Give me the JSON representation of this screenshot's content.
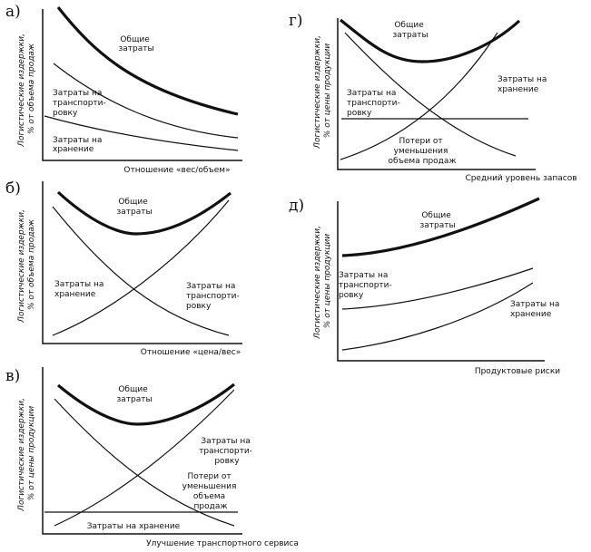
{
  "panels": [
    {
      "id": "a",
      "letter": "а)",
      "ylabel": [
        "Логистические издержки,",
        "% от объема продаж"
      ],
      "xlabel": "Отношение «вес/объем»",
      "curves": [
        {
          "name": "total",
          "label": [
            "Общие",
            "затраты"
          ]
        },
        {
          "name": "transport",
          "label": [
            "Затраты на",
            "транспорти-",
            "ровку"
          ]
        },
        {
          "name": "storage",
          "label": [
            "Затраты на",
            "хранение"
          ]
        }
      ]
    },
    {
      "id": "b",
      "letter": "б)",
      "ylabel": [
        "Логистические издержки,",
        "% от объема продаж"
      ],
      "xlabel": "Отношение «цена/вес»",
      "curves": [
        {
          "name": "total",
          "label": [
            "Общие",
            "затраты"
          ]
        },
        {
          "name": "storage",
          "label": [
            "Затраты на",
            "хранение"
          ]
        },
        {
          "name": "transport",
          "label": [
            "Затраты на",
            "транспорти-",
            "ровку"
          ]
        }
      ]
    },
    {
      "id": "v",
      "letter": "в)",
      "ylabel": [
        "Логистические издержки,",
        "% от цены продукции"
      ],
      "xlabel": "Улучшение транспортного сервиса",
      "curves": [
        {
          "name": "total",
          "label": [
            "Общие",
            "затраты"
          ]
        },
        {
          "name": "transport",
          "label": [
            "Затраты на",
            "транспорти-",
            "ровку"
          ]
        },
        {
          "name": "losses",
          "label": [
            "Потери от",
            "уменьшения",
            "объема",
            "продаж"
          ]
        },
        {
          "name": "storage",
          "label": [
            "Затраты на хранение"
          ]
        }
      ]
    },
    {
      "id": "g",
      "letter": "г)",
      "ylabel": [
        "Логистические издержки,",
        "% от цены продукции"
      ],
      "xlabel": "Средний уровень запасов",
      "curves": [
        {
          "name": "total",
          "label": [
            "Общие",
            "затраты"
          ]
        },
        {
          "name": "storage",
          "label": [
            "Затраты на",
            "хранение"
          ]
        },
        {
          "name": "transport",
          "label": [
            "Затраты на",
            "транспорти-",
            "ровку"
          ]
        },
        {
          "name": "losses",
          "label": [
            "Потери от",
            "уменьшения",
            "объема продаж"
          ]
        }
      ]
    },
    {
      "id": "d",
      "letter": "д)",
      "ylabel": [
        "Логистические издержки,",
        "% от цены продукции"
      ],
      "xlabel": "Продуктовые риски",
      "curves": [
        {
          "name": "total",
          "label": [
            "Общие",
            "затраты"
          ]
        },
        {
          "name": "transport",
          "label": [
            "Затраты на",
            "транспорти-",
            "ровку"
          ]
        },
        {
          "name": "storage",
          "label": [
            "Затраты на",
            "хранение"
          ]
        }
      ]
    }
  ]
}
